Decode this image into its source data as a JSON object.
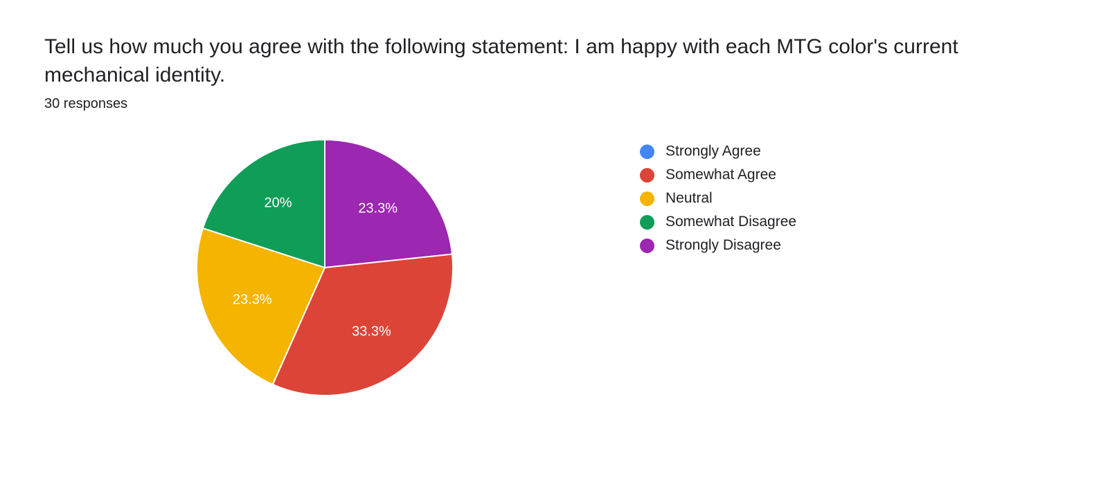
{
  "question": "Tell us how much you agree with the following statement: I am happy with each MTG color's current mechanical identity.",
  "responses_text": "30 responses",
  "chart": {
    "type": "pie",
    "radius": 185,
    "stroke_color": "#ffffff",
    "stroke_width": 2,
    "background_color": "#ffffff",
    "label_color": "#ffffff",
    "label_fontsize": 20,
    "legend_fontsize": 21,
    "title_fontsize": 30,
    "slices": [
      {
        "name": "Strongly Disagree",
        "percent": 23.3,
        "color": "#9c27b0",
        "label": "23.3%",
        "show_label": true
      },
      {
        "name": "Somewhat Agree",
        "percent": 33.3,
        "color": "#db4437",
        "label": "33.3%",
        "show_label": true
      },
      {
        "name": "Neutral",
        "percent": 23.3,
        "color": "#f4b400",
        "label": "23.3%",
        "show_label": true
      },
      {
        "name": "Somewhat Disagree",
        "percent": 20.0,
        "color": "#0f9d58",
        "label": "20%",
        "show_label": true
      }
    ],
    "legend": [
      {
        "name": "Strongly Agree",
        "color": "#4285f4"
      },
      {
        "name": "Somewhat Agree",
        "color": "#db4437"
      },
      {
        "name": "Neutral",
        "color": "#f4b400"
      },
      {
        "name": "Somewhat Disagree",
        "color": "#0f9d58"
      },
      {
        "name": "Strongly Disagree",
        "color": "#9c27b0"
      }
    ]
  }
}
